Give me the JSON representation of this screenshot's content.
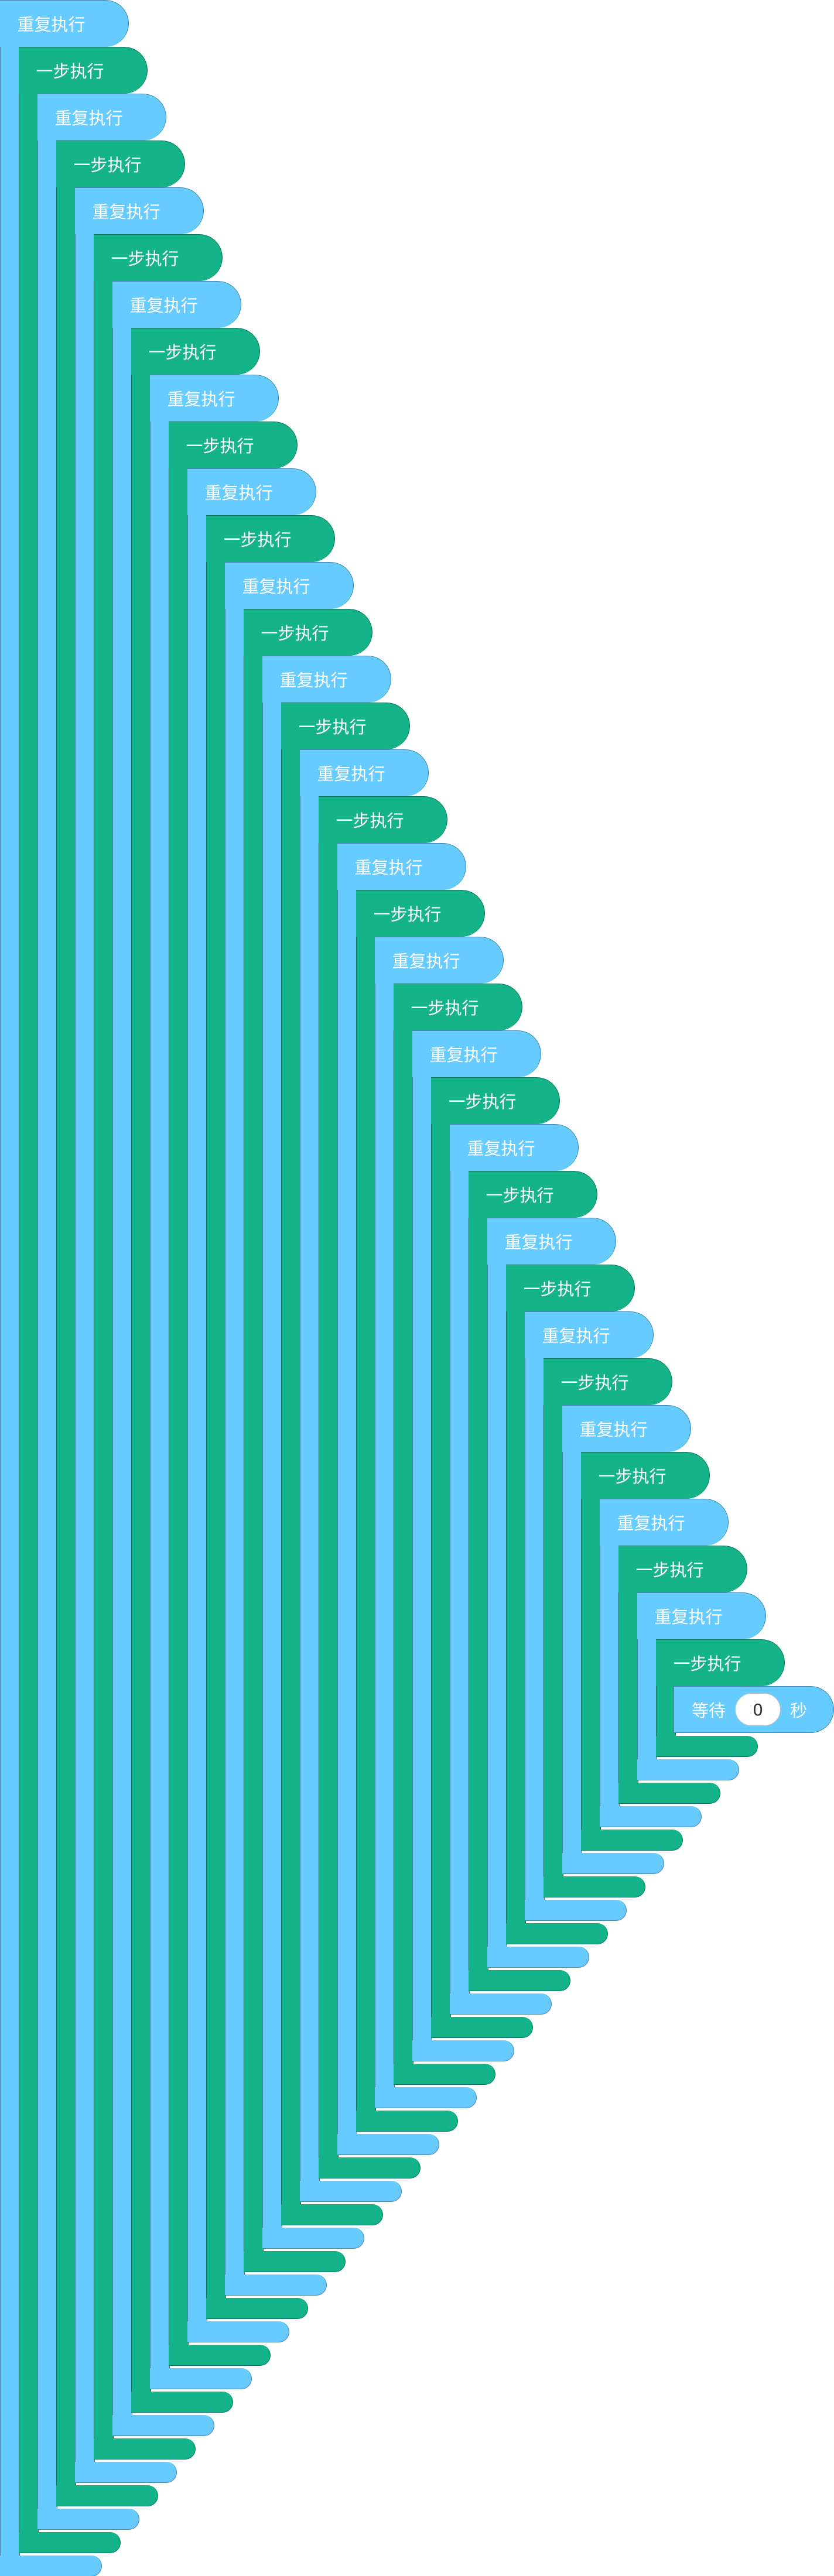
{
  "workspace": {
    "background": "#ffffff"
  },
  "block_colors": {
    "repeat": "#66ccff",
    "step": "#15b389",
    "wait": "#66ccff"
  },
  "blocks": [
    {
      "type": "repeat",
      "label": "重复执行"
    },
    {
      "type": "step",
      "label": "一步执行"
    },
    {
      "type": "repeat",
      "label": "重复执行"
    },
    {
      "type": "step",
      "label": "一步执行"
    },
    {
      "type": "repeat",
      "label": "重复执行"
    },
    {
      "type": "step",
      "label": "一步执行"
    },
    {
      "type": "repeat",
      "label": "重复执行"
    },
    {
      "type": "step",
      "label": "一步执行"
    },
    {
      "type": "repeat",
      "label": "重复执行"
    },
    {
      "type": "step",
      "label": "一步执行"
    },
    {
      "type": "repeat",
      "label": "重复执行"
    },
    {
      "type": "step",
      "label": "一步执行"
    },
    {
      "type": "repeat",
      "label": "重复执行"
    },
    {
      "type": "step",
      "label": "一步执行"
    },
    {
      "type": "repeat",
      "label": "重复执行"
    },
    {
      "type": "step",
      "label": "一步执行"
    },
    {
      "type": "repeat",
      "label": "重复执行"
    },
    {
      "type": "step",
      "label": "一步执行"
    },
    {
      "type": "repeat",
      "label": "重复执行"
    },
    {
      "type": "step",
      "label": "一步执行"
    },
    {
      "type": "repeat",
      "label": "重复执行"
    },
    {
      "type": "step",
      "label": "一步执行"
    },
    {
      "type": "repeat",
      "label": "重复执行"
    },
    {
      "type": "step",
      "label": "一步执行"
    },
    {
      "type": "repeat",
      "label": "重复执行"
    },
    {
      "type": "step",
      "label": "一步执行"
    },
    {
      "type": "repeat",
      "label": "重复执行"
    },
    {
      "type": "step",
      "label": "一步执行"
    },
    {
      "type": "repeat",
      "label": "重复执行"
    },
    {
      "type": "step",
      "label": "一步执行"
    },
    {
      "type": "repeat",
      "label": "重复执行"
    },
    {
      "type": "step",
      "label": "一步执行"
    },
    {
      "type": "repeat",
      "label": "重复执行"
    },
    {
      "type": "step",
      "label": "一步执行"
    },
    {
      "type": "repeat",
      "label": "重复执行"
    },
    {
      "type": "step",
      "label": "一步执行"
    }
  ],
  "wait_block": {
    "label": "等待",
    "value": "0",
    "unit": "秒"
  }
}
